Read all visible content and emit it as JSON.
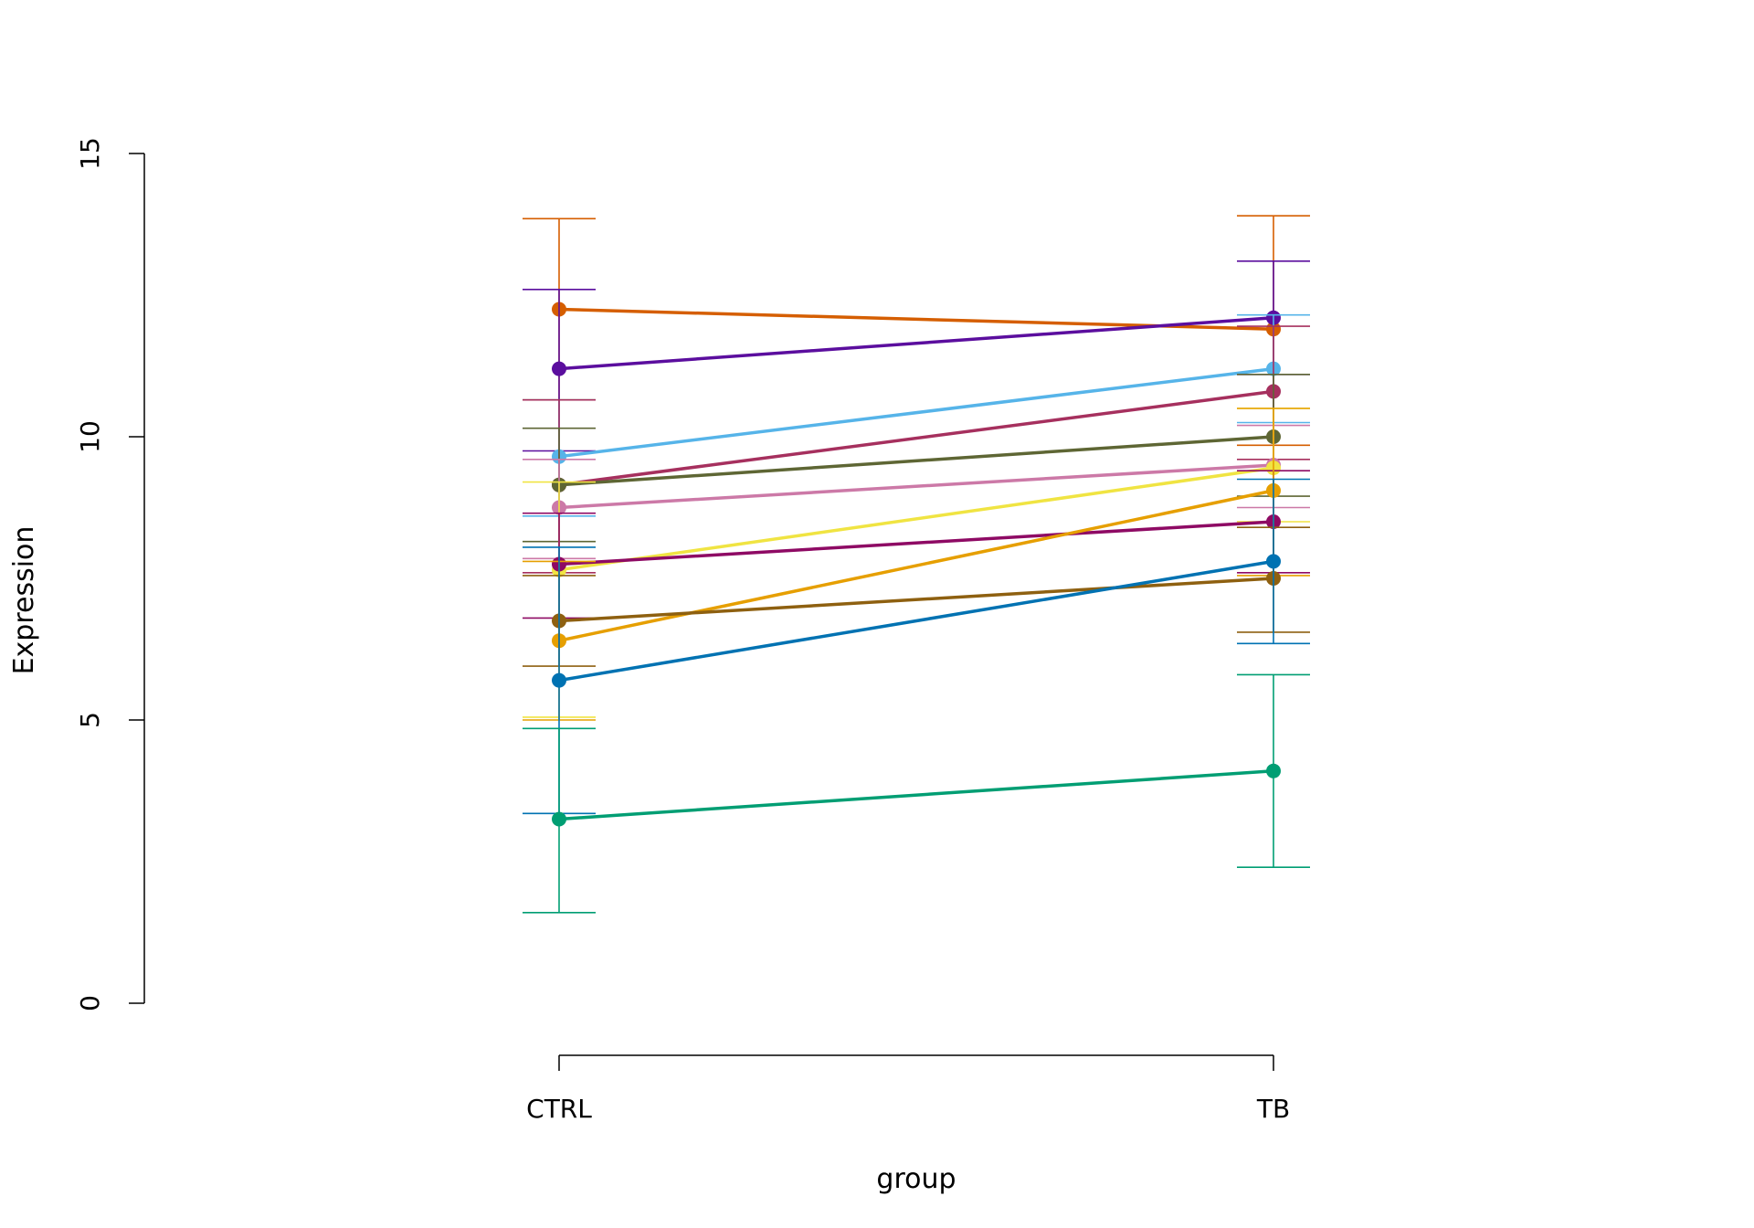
{
  "chart_data": {
    "type": "line",
    "title": "",
    "xlabel": "group",
    "ylabel": "Expression",
    "categories": [
      "CTRL",
      "TB"
    ],
    "ylim": [
      0,
      15
    ],
    "yticks": [
      0,
      5,
      10,
      15
    ],
    "grid": false,
    "legend": "none",
    "series": [
      {
        "color": "#D55E00",
        "values": [
          12.25,
          11.9
        ],
        "error_low": [
          10.65,
          9.85
        ],
        "error_high": [
          13.85,
          13.9
        ]
      },
      {
        "color": "#5B0E9E",
        "values": [
          11.2,
          12.1
        ],
        "error_low": [
          9.75,
          11.1
        ],
        "error_high": [
          12.6,
          13.1
        ]
      },
      {
        "color": "#56B4E9",
        "values": [
          9.65,
          11.2
        ],
        "error_low": [
          8.6,
          10.25
        ],
        "error_high": [
          10.65,
          12.15
        ]
      },
      {
        "color": "#A6305E",
        "values": [
          9.15,
          10.8
        ],
        "error_low": [
          7.6,
          9.6
        ],
        "error_high": [
          10.65,
          11.95
        ]
      },
      {
        "color": "#5E6634",
        "values": [
          9.15,
          10.0
        ],
        "error_low": [
          8.15,
          8.95
        ],
        "error_high": [
          10.15,
          11.1
        ]
      },
      {
        "color": "#CC79A7",
        "values": [
          8.75,
          9.5
        ],
        "error_low": [
          7.85,
          8.75
        ],
        "error_high": [
          9.6,
          10.2
        ]
      },
      {
        "color": "#F0E442",
        "values": [
          7.65,
          9.45
        ],
        "error_low": [
          5.05,
          8.5
        ],
        "error_high": [
          9.2,
          10.5
        ]
      },
      {
        "color": "#8E0A64",
        "values": [
          7.75,
          8.5
        ],
        "error_low": [
          6.8,
          7.6
        ],
        "error_high": [
          8.65,
          9.4
        ]
      },
      {
        "color": "#E69F00",
        "values": [
          6.4,
          9.05
        ],
        "error_low": [
          5.0,
          7.55
        ],
        "error_high": [
          7.8,
          10.5
        ]
      },
      {
        "color": "#8E6010",
        "values": [
          6.75,
          7.5
        ],
        "error_low": [
          5.95,
          6.55
        ],
        "error_high": [
          7.55,
          8.4
        ]
      },
      {
        "color": "#0072B2",
        "values": [
          5.7,
          7.8
        ],
        "error_low": [
          3.35,
          6.35
        ],
        "error_high": [
          8.05,
          9.25
        ]
      },
      {
        "color": "#009E73",
        "values": [
          3.25,
          4.1
        ],
        "error_low": [
          1.6,
          2.4
        ],
        "error_high": [
          4.85,
          5.8
        ]
      }
    ]
  }
}
